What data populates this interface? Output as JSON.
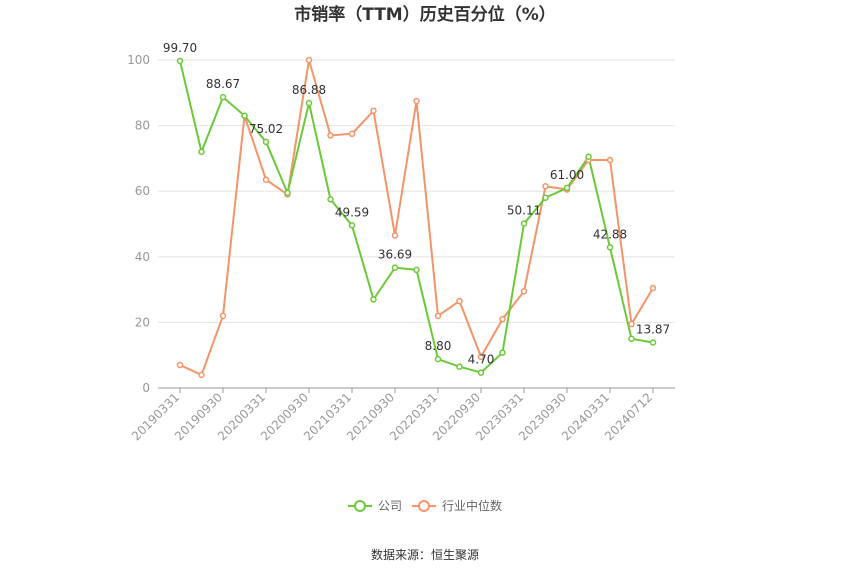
{
  "chart_data": {
    "type": "line",
    "title": "市销率（TTM）历史百分位（%）",
    "xlabel": "",
    "ylabel": "",
    "ylim": [
      0,
      100
    ],
    "yticks": [
      0,
      20,
      40,
      60,
      80,
      100
    ],
    "grid": true,
    "legend_position": "bottom",
    "x": [
      "20190331",
      "20190630",
      "20190930",
      "20191231",
      "20200331",
      "20200630",
      "20200930",
      "20201231",
      "20210331",
      "20210630",
      "20210930",
      "20211231",
      "20220331",
      "20220630",
      "20220930",
      "20221231",
      "20230331",
      "20230630",
      "20230930",
      "20231231",
      "20240331",
      "20240630",
      "20240712"
    ],
    "x_tick_labels": [
      "20190331",
      "20190930",
      "20200331",
      "20200930",
      "20210331",
      "20210930",
      "20220331",
      "20220930",
      "20230331",
      "20230930",
      "20240331",
      "20240712"
    ],
    "series": [
      {
        "name": "公司",
        "color": "#6cc93a",
        "values": [
          99.7,
          72.0,
          88.67,
          83.0,
          75.02,
          59.5,
          86.88,
          57.5,
          49.59,
          27.0,
          36.69,
          36.0,
          8.8,
          6.5,
          4.7,
          10.8,
          50.11,
          58.0,
          61.0,
          70.5,
          42.88,
          15.0,
          13.87
        ],
        "labels": [
          "99.70",
          null,
          "88.67",
          null,
          "75.02",
          null,
          "86.88",
          null,
          "49.59",
          null,
          "36.69",
          null,
          "8.80",
          null,
          "4.70",
          null,
          "50.11",
          null,
          "61.00",
          null,
          "42.88",
          null,
          "13.87"
        ]
      },
      {
        "name": "行业中位数",
        "color": "#f4946a",
        "values": [
          7.0,
          4.0,
          22.0,
          83.0,
          63.5,
          59.0,
          100.0,
          77.0,
          77.5,
          84.5,
          46.5,
          87.5,
          22.0,
          26.5,
          9.5,
          21.0,
          29.5,
          61.5,
          60.5,
          69.5,
          69.5,
          19.5,
          30.5
        ]
      }
    ]
  },
  "source_text": "数据来源：恒生聚源"
}
